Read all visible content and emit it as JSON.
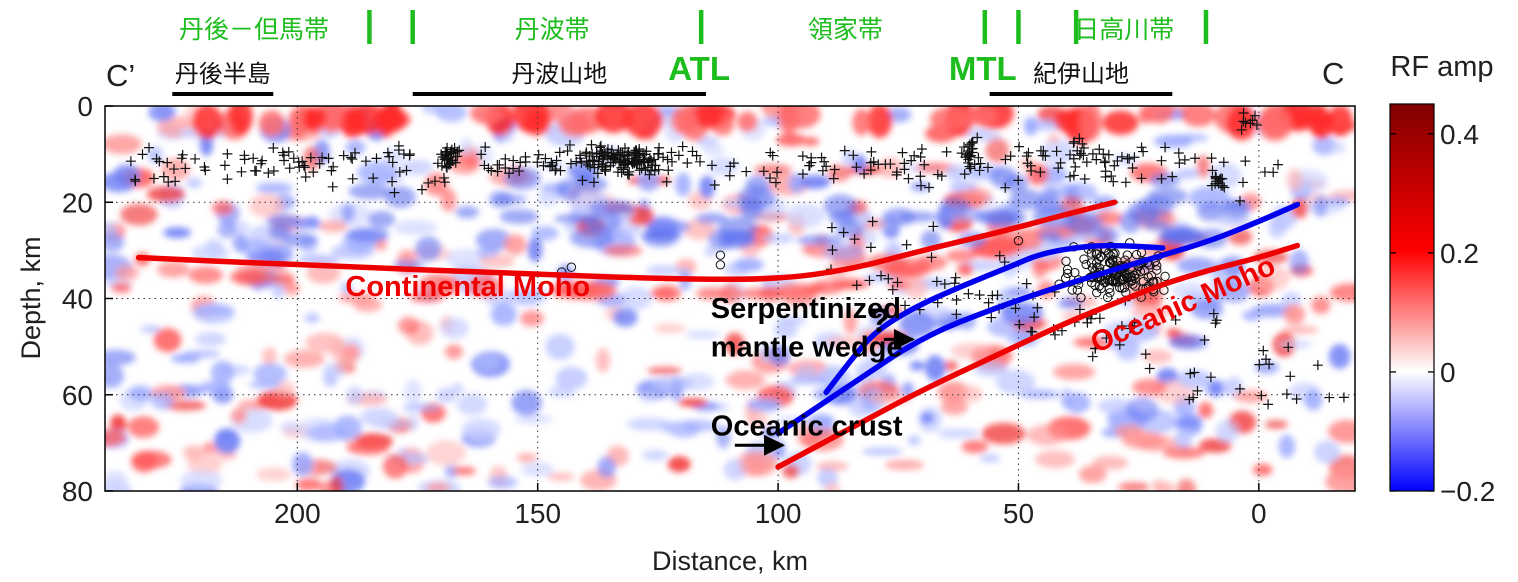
{
  "chart_data": {
    "type": "heatmap",
    "xlabel": "Distance, km",
    "ylabel": "Depth, km",
    "xlim": [
      240,
      -20
    ],
    "ylim": [
      0,
      80
    ],
    "x_reversed": true,
    "y_reversed": true,
    "xticks": [
      200,
      150,
      100,
      50,
      0
    ],
    "yticks": [
      0,
      20,
      40,
      60,
      80
    ],
    "grid": "dotted",
    "profile_start": "C’",
    "profile_end": "C",
    "colorbar": {
      "title": "RF amp",
      "min": -0.2,
      "max": 0.45,
      "ticks": [
        {
          "value": 0.4,
          "label": "0.4"
        },
        {
          "value": 0.2,
          "label": "0.2"
        },
        {
          "value": 0,
          "label": "0"
        },
        {
          "value": -0.2,
          "label": "−0.2"
        }
      ],
      "colors": [
        "#0000ff",
        "#ffffff",
        "#ff0000",
        "#800000"
      ]
    },
    "geologic_belts": [
      {
        "label": "丹後－但馬帯",
        "x": 209
      },
      {
        "label": "丹波帯",
        "x": 147
      },
      {
        "label": "領家帯",
        "x": 86
      },
      {
        "label": "日高川帯",
        "x": 28
      }
    ],
    "belt_boundaries": [
      185,
      176,
      116,
      57,
      50,
      38,
      11
    ],
    "regions": [
      {
        "label": "丹後半島",
        "x_start": 226,
        "x_end": 205
      },
      {
        "label": "丹波山地",
        "x_start": 176,
        "x_end": 115
      },
      {
        "label": "紀伊山地",
        "x_start": 56,
        "x_end": 18
      }
    ],
    "faults": [
      {
        "label": "ATL",
        "x": 116
      },
      {
        "label": "MTL",
        "x": 57
      }
    ],
    "series": [
      {
        "name": "Continental Moho",
        "color": "#ee0000",
        "x": [
          233,
          200,
          150,
          120,
          100,
          85,
          70,
          55,
          40,
          30
        ],
        "y": [
          31.5,
          33,
          35,
          36,
          36,
          34,
          30,
          26.5,
          22.5,
          20
        ]
      },
      {
        "name": "Oceanic Moho",
        "color": "#ee0000",
        "x": [
          100,
          85,
          70,
          55,
          40,
          30,
          20,
          10,
          0,
          -8
        ],
        "y": [
          75,
          67,
          59,
          52,
          45,
          41,
          37,
          34,
          31.5,
          29
        ]
      },
      {
        "name": "Oceanic crust",
        "color": "#0000ee",
        "x": [
          100,
          85,
          70,
          55,
          40,
          30,
          20,
          10,
          0,
          -8
        ],
        "y": [
          68,
          58,
          48,
          42,
          37,
          34,
          31,
          28,
          24,
          20.5
        ]
      },
      {
        "name": "Serpentinized mantle wedge",
        "color": "#0000ee",
        "x": [
          90,
          85,
          80,
          72,
          62,
          52,
          45,
          35,
          28,
          20
        ],
        "y": [
          59.5,
          53,
          47,
          42,
          37.5,
          33.5,
          30.5,
          29,
          29,
          29.5
        ]
      }
    ],
    "annotations": [
      {
        "text": "Continental Moho",
        "color": "#ee0000",
        "x": 190,
        "y": 39.5
      },
      {
        "text": "Oceanic Moho",
        "color": "#ee0000",
        "x": 15,
        "y": 43
      },
      {
        "text": "Serpentinized",
        "color": "#000000",
        "x": 114,
        "y": 44
      },
      {
        "text": "mantle wedge",
        "color": "#000000",
        "x": 114,
        "y": 52
      },
      {
        "text": "?",
        "color": "#000000",
        "x": 81,
        "y": 47
      },
      {
        "text": "Oceanic crust",
        "color": "#000000",
        "x": 114,
        "y": 68.5
      }
    ]
  }
}
